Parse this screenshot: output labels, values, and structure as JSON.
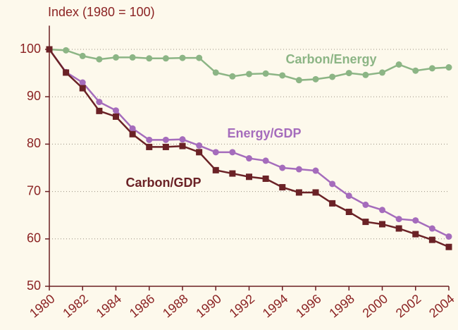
{
  "chart_data": {
    "type": "line",
    "y_label": "Index (1980 = 100)",
    "x": [
      1980,
      1981,
      1982,
      1983,
      1984,
      1985,
      1986,
      1987,
      1988,
      1989,
      1990,
      1991,
      1992,
      1993,
      1994,
      1995,
      1996,
      1997,
      1998,
      1999,
      2000,
      2001,
      2002,
      2003,
      2004
    ],
    "series": [
      {
        "name": "Carbon/Energy",
        "color": "#8cb585",
        "marker": "circle",
        "values": [
          100,
          99.8,
          98.6,
          97.9,
          98.3,
          98.3,
          98.1,
          98.1,
          98.2,
          98.2,
          95.1,
          94.3,
          94.8,
          94.9,
          94.5,
          93.5,
          93.7,
          94.2,
          95.0,
          94.6,
          95.1,
          96.8,
          95.5,
          96.0,
          96.2
        ]
      },
      {
        "name": "Energy/GDP",
        "color": "#a56cbc",
        "marker": "circle",
        "values": [
          100,
          95.2,
          93.0,
          88.9,
          87.1,
          83.3,
          80.9,
          80.9,
          81.0,
          79.7,
          78.3,
          78.3,
          77.0,
          76.5,
          75.0,
          74.7,
          74.4,
          71.6,
          69.1,
          67.2,
          66.1,
          64.2,
          63.9,
          62.2,
          60.5
        ]
      },
      {
        "name": "Carbon/GDP",
        "color": "#6b2226",
        "marker": "square",
        "values": [
          100,
          95.1,
          91.8,
          87.0,
          85.8,
          82.1,
          79.4,
          79.4,
          79.6,
          78.3,
          74.5,
          73.8,
          73.1,
          72.7,
          70.9,
          69.8,
          69.8,
          67.5,
          65.7,
          63.6,
          63.1,
          62.2,
          61.0,
          59.8,
          58.3
        ]
      }
    ],
    "xlim": [
      1980,
      2004
    ],
    "xticks": [
      1980,
      1982,
      1984,
      1986,
      1988,
      1990,
      1992,
      1994,
      1996,
      1998,
      2000,
      2002,
      2004
    ],
    "ylim": [
      50,
      105
    ],
    "yticks": [
      50,
      60,
      70,
      80,
      90,
      100
    ],
    "grid": true
  }
}
